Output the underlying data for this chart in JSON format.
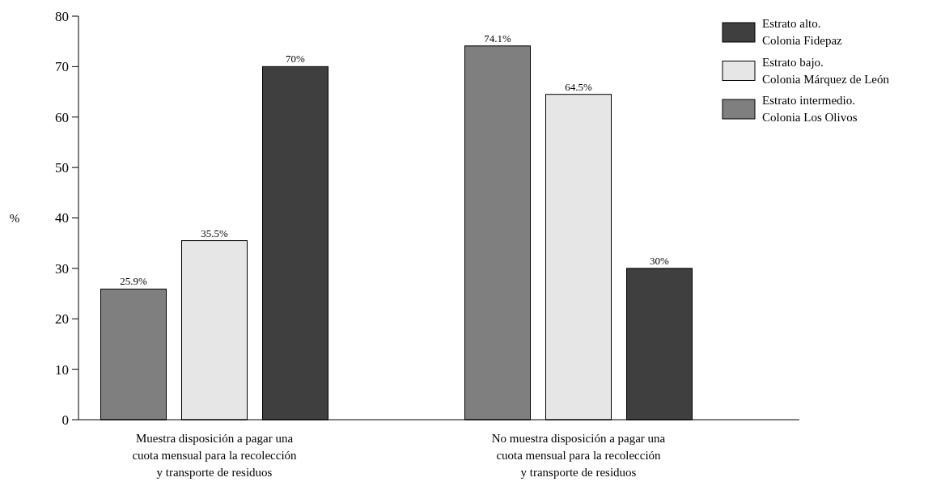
{
  "chart_data": {
    "type": "bar",
    "ylabel": "%",
    "categories": [
      "Muestra disposición a pagar una cuota mensual para la recolección y transporte de residuos",
      "No muestra disposición a pagar una cuota mensual para la recolección y transporte de residuos"
    ],
    "series": [
      {
        "name": "Estrato intermedio. Colonia Los Olivos",
        "color": "#7f7f7f",
        "values": [
          25.9,
          74.1
        ],
        "value_labels": [
          "25.9%",
          "74.1%"
        ]
      },
      {
        "name": "Estrato bajo. Colonia Márquez de León",
        "color": "#e6e6e6",
        "values": [
          35.5,
          64.5
        ],
        "value_labels": [
          "35.5%",
          "64.5%"
        ]
      },
      {
        "name": "Estrato alto. Colonia Fidepaz",
        "color": "#3f3f3f",
        "values": [
          70,
          30
        ],
        "value_labels": [
          "70%",
          "30%"
        ]
      }
    ],
    "ylim": [
      0,
      80
    ],
    "yticks": [
      0,
      10,
      20,
      30,
      40,
      50,
      60,
      70,
      80
    ],
    "legend": "top right",
    "grid": false
  }
}
